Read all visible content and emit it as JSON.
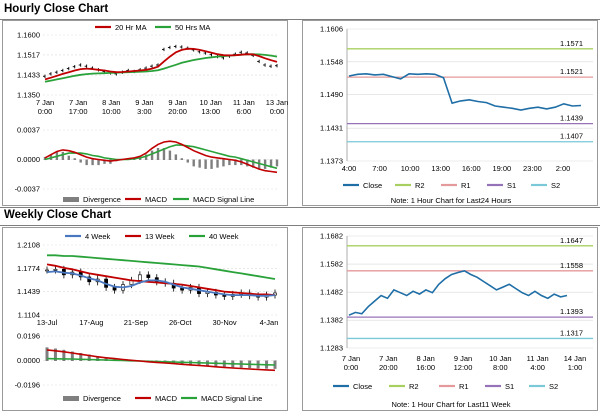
{
  "sections": {
    "hourly_title": "Hourly Close Chart",
    "weekly_title": "Weekly Close Chart"
  },
  "colors": {
    "close": "#1f6ea6",
    "ma20": "#c00000",
    "ma50": "#2aa23a",
    "r2": "#a8d060",
    "r1": "#e49a9a",
    "s1": "#9673b9",
    "s2": "#7ac8d8",
    "macd": "#c00000",
    "signal": "#2aa23a",
    "divergence": "#7f7f7f",
    "week4": "#4a78c0",
    "week13": "#c00000",
    "week40": "#2aa23a"
  },
  "chart_data": [
    {
      "id": "hourly_price",
      "type": "line",
      "legend": [
        "20 Hr MA",
        "50 Hrs MA"
      ],
      "x_ticks": [
        "7 Jan|0:00",
        "7 Jan|17:00",
        "8 Jan|10:00",
        "9 Jan|3:00",
        "9 Jan|20:00",
        "10 Jan|13:00",
        "11 Jan|6:00",
        "13 Jan|0:00"
      ],
      "y_ticks": [
        "1.1600",
        "1.1517",
        "1.1433",
        "1.1350"
      ],
      "ylim": [
        1.135,
        1.16
      ],
      "series": [
        {
          "name": "Close",
          "values": [
            1.1428,
            1.1438,
            1.1445,
            1.1452,
            1.146,
            1.1468,
            1.1475,
            1.147,
            1.1462,
            1.1455,
            1.1448,
            1.1442,
            1.1438,
            1.1445,
            1.1452,
            1.1448,
            1.1455,
            1.1462,
            1.147,
            1.1475,
            1.154,
            1.1548,
            1.1552,
            1.155,
            1.1545,
            1.1538,
            1.153,
            1.1525,
            1.1518,
            1.151,
            1.1505,
            1.1512,
            1.152,
            1.1528,
            1.1525,
            1.1515,
            1.149,
            1.1475,
            1.147,
            1.1472
          ]
        },
        {
          "name": "20 Hr MA",
          "values": [
            1.1415,
            1.1422,
            1.143,
            1.1438,
            1.1445,
            1.1452,
            1.1458,
            1.146,
            1.1458,
            1.1455,
            1.1452,
            1.1448,
            1.1445,
            1.1446,
            1.1448,
            1.145,
            1.1452,
            1.1455,
            1.146,
            1.1468,
            1.149,
            1.151,
            1.1528,
            1.1538,
            1.1543,
            1.1542,
            1.1538,
            1.1532,
            1.1526,
            1.152,
            1.1516,
            1.1515,
            1.1516,
            1.1518,
            1.152,
            1.1519,
            1.1512,
            1.1503,
            1.1495,
            1.1488
          ]
        },
        {
          "name": "50 Hrs MA",
          "values": [
            1.1405,
            1.141,
            1.1415,
            1.142,
            1.1425,
            1.143,
            1.1434,
            1.1437,
            1.1439,
            1.144,
            1.1441,
            1.1442,
            1.1443,
            1.1444,
            1.1445,
            1.1446,
            1.1447,
            1.1448,
            1.145,
            1.1453,
            1.146,
            1.1468,
            1.1476,
            1.1484,
            1.149,
            1.1496,
            1.15,
            1.1504,
            1.1507,
            1.151,
            1.1512,
            1.1514,
            1.1516,
            1.1518,
            1.1519,
            1.152,
            1.1519,
            1.1517,
            1.1514,
            1.151
          ]
        }
      ]
    },
    {
      "id": "hourly_macd",
      "type": "line",
      "y_ticks": [
        "0.0037",
        "0.0000",
        "-0.0037"
      ],
      "ylim": [
        -0.0037,
        0.0037
      ],
      "legend": [
        "Divergence",
        "MACD",
        "MACD Signal Line"
      ],
      "series": [
        {
          "name": "MACD",
          "values": [
            0.0002,
            0.0006,
            0.001,
            0.0012,
            0.0011,
            0.0009,
            0.0006,
            0.0003,
            0.0001,
            0.0,
            -0.0001,
            -0.0002,
            -0.0001,
            0.0,
            0.0001,
            0.0002,
            0.0004,
            0.0008,
            0.0014,
            0.0019,
            0.0022,
            0.0023,
            0.0022,
            0.0019,
            0.0015,
            0.0011,
            0.0008,
            0.0005,
            0.0003,
            0.0002,
            0.0001,
            0.0,
            -0.0001,
            -0.0003,
            -0.0006,
            -0.0009,
            -0.0012,
            -0.0014,
            -0.0015,
            -0.0016
          ]
        },
        {
          "name": "MACD Signal Line",
          "values": [
            0.0,
            0.0002,
            0.0004,
            0.0006,
            0.0008,
            0.0008,
            0.0008,
            0.0007,
            0.0005,
            0.0004,
            0.0002,
            0.0001,
            0.0,
            0.0,
            0.0,
            0.0001,
            0.0002,
            0.0004,
            0.0007,
            0.001,
            0.0013,
            0.0016,
            0.0018,
            0.0018,
            0.0017,
            0.0016,
            0.0014,
            0.0012,
            0.001,
            0.0008,
            0.0006,
            0.0004,
            0.0003,
            0.0001,
            -0.0001,
            -0.0003,
            -0.0005,
            -0.0007,
            -0.0009,
            -0.0011
          ]
        }
      ]
    },
    {
      "id": "hourly_pivots",
      "type": "line",
      "y_ticks": [
        "1.1606",
        "1.1548",
        "1.1490",
        "1.1431",
        "1.1373"
      ],
      "ylim": [
        1.1373,
        1.1606
      ],
      "x_ticks": [
        "4:00",
        "7:00",
        "10:00",
        "13:00",
        "16:00",
        "19:00",
        "23:00",
        "2:00"
      ],
      "legend": [
        "Close",
        "R2",
        "R1",
        "S1",
        "S2"
      ],
      "levels": {
        "R2": 1.1571,
        "R1": 1.1521,
        "S1": 1.1439,
        "S2": 1.1407
      },
      "level_labels": {
        "R2": "1.1571",
        "R1": "1.1521",
        "S1": "1.1439",
        "S2": "1.1407"
      },
      "series": [
        {
          "name": "Close",
          "values": [
            1.1523,
            1.1526,
            1.1527,
            1.1525,
            1.1526,
            1.1522,
            1.1518,
            1.1527,
            1.1526,
            1.1527,
            1.1526,
            1.152,
            1.1475,
            1.1479,
            1.1481,
            1.1478,
            1.1476,
            1.147,
            1.1468,
            1.1466,
            1.1463,
            1.1466,
            1.1468,
            1.1465,
            1.1468,
            1.1474,
            1.147,
            1.1471
          ]
        }
      ],
      "note": "Note: 1 Hour Chart for Last24 Hours"
    },
    {
      "id": "weekly_price",
      "type": "line",
      "legend": [
        "4 Week",
        "13 Week",
        "40 Week"
      ],
      "y_ticks": [
        "1.2108",
        "1.1774",
        "1.1439",
        "1.1104"
      ],
      "ylim": [
        1.1104,
        1.2108
      ],
      "x_ticks": [
        "13-Jul",
        "17-Aug",
        "21-Sep",
        "26-Oct",
        "30-Nov",
        "4-Jan"
      ],
      "series": [
        {
          "name": "Close",
          "values": [
            1.175,
            1.176,
            1.168,
            1.172,
            1.165,
            1.158,
            1.162,
            1.15,
            1.146,
            1.154,
            1.16,
            1.168,
            1.164,
            1.158,
            1.156,
            1.149,
            1.146,
            1.15,
            1.141,
            1.143,
            1.139,
            1.137,
            1.14,
            1.142,
            1.138,
            1.136,
            1.139,
            1.142
          ]
        },
        {
          "name": "4 Week",
          "values": [
            1.172,
            1.173,
            1.171,
            1.17,
            1.167,
            1.163,
            1.16,
            1.155,
            1.151,
            1.15,
            1.152,
            1.157,
            1.16,
            1.16,
            1.158,
            1.154,
            1.15,
            1.148,
            1.146,
            1.144,
            1.142,
            1.14,
            1.139,
            1.139,
            1.139,
            1.138,
            1.138,
            1.139
          ]
        },
        {
          "name": "13 Week",
          "values": [
            1.183,
            1.181,
            1.178,
            1.176,
            1.173,
            1.17,
            1.168,
            1.166,
            1.164,
            1.162,
            1.16,
            1.159,
            1.158,
            1.157,
            1.156,
            1.155,
            1.154,
            1.152,
            1.15,
            1.148,
            1.146,
            1.144,
            1.143,
            1.142,
            1.141,
            1.14,
            1.14,
            1.139
          ]
        },
        {
          "name": "40 Week",
          "values": [
            1.196,
            1.196,
            1.195,
            1.195,
            1.194,
            1.193,
            1.192,
            1.191,
            1.19,
            1.189,
            1.188,
            1.187,
            1.186,
            1.185,
            1.184,
            1.183,
            1.182,
            1.181,
            1.18,
            1.178,
            1.176,
            1.174,
            1.172,
            1.17,
            1.168,
            1.166,
            1.164,
            1.162
          ]
        }
      ]
    },
    {
      "id": "weekly_macd",
      "type": "line",
      "y_ticks": [
        "0.0196",
        "0.0000",
        "-0.0196"
      ],
      "ylim": [
        -0.0196,
        0.0196
      ],
      "legend": [
        "Divergence",
        "MACD",
        "MACD Signal Line"
      ],
      "series": [
        {
          "name": "MACD",
          "values": [
            0.0085,
            0.0078,
            0.007,
            0.006,
            0.005,
            0.004,
            0.003,
            0.0022,
            0.0015,
            0.0008,
            0.0002,
            -0.0004,
            -0.001,
            -0.0015,
            -0.002,
            -0.0025,
            -0.003,
            -0.0035,
            -0.004,
            -0.0045,
            -0.005,
            -0.0055,
            -0.006,
            -0.0064,
            -0.0068,
            -0.0072,
            -0.0075,
            -0.0078
          ]
        },
        {
          "name": "MACD Signal Line",
          "values": [
            0.0015,
            0.0014,
            0.0013,
            0.0012,
            0.001,
            0.0008,
            0.0006,
            0.0004,
            0.0002,
            0.0,
            -0.0002,
            -0.0004,
            -0.0006,
            -0.0008,
            -0.001,
            -0.0012,
            -0.0014,
            -0.0016,
            -0.0018,
            -0.002,
            -0.0022,
            -0.0024,
            -0.0026,
            -0.0028,
            -0.003,
            -0.0032,
            -0.0034,
            -0.0036
          ]
        }
      ]
    },
    {
      "id": "weekly_pivots",
      "type": "line",
      "y_ticks": [
        "1.1682",
        "1.1582",
        "1.1482",
        "1.1382",
        "1.1283"
      ],
      "ylim": [
        1.1283,
        1.1682
      ],
      "x_ticks": [
        "7 Jan|0:00",
        "7 Jan|20:00",
        "8 Jan|16:00",
        "9 Jan|12:00",
        "10 Jan|8:00",
        "11 Jan|4:00",
        "14 Jan|1:00"
      ],
      "legend": [
        "Close",
        "R2",
        "R1",
        "S1",
        "S2"
      ],
      "levels": {
        "R2": 1.1647,
        "R1": 1.1558,
        "S1": 1.1393,
        "S2": 1.1317
      },
      "level_labels": {
        "R2": "1.1647",
        "R1": "1.1558",
        "S1": "1.1393",
        "S2": "1.1317"
      },
      "series": [
        {
          "name": "Close",
          "values": [
            1.14,
            1.141,
            1.1405,
            1.143,
            1.145,
            1.147,
            1.146,
            1.149,
            1.148,
            1.147,
            1.1485,
            1.1475,
            1.149,
            1.148,
            1.151,
            1.153,
            1.1545,
            1.1552,
            1.1558,
            1.1545,
            1.1535,
            1.152,
            1.1505,
            1.149,
            1.15,
            1.151,
            1.1495,
            1.148,
            1.147,
            1.1485,
            1.147,
            1.146,
            1.1475,
            1.1465,
            1.147
          ]
        }
      ],
      "note": "Note: 1 Hour Chart for Last11 Week"
    }
  ]
}
